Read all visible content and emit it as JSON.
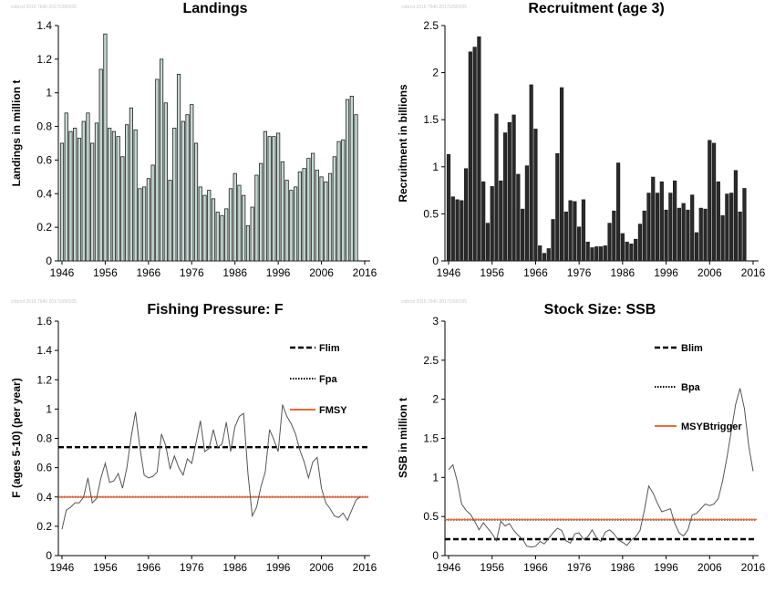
{
  "watermark": "cobrcd 2016 7640 20171090105",
  "chart_data": [
    {
      "type": "bar",
      "title": "Landings",
      "ylabel": "Landings in million t",
      "ylim": [
        0,
        1.4
      ],
      "yticks": [
        "0",
        "0.2",
        "0.4",
        "0.6",
        "0.8",
        "1",
        "1.2",
        "1.4"
      ],
      "xticks": [
        "1946",
        "1956",
        "1966",
        "1976",
        "1986",
        "1996",
        "2006",
        "2016"
      ],
      "x_start": 1946,
      "bar_color": "#c4d8d2",
      "values": [
        0.7,
        0.88,
        0.77,
        0.79,
        0.73,
        0.83,
        0.88,
        0.7,
        0.82,
        1.14,
        1.35,
        0.79,
        0.77,
        0.74,
        0.62,
        0.81,
        0.91,
        0.78,
        0.43,
        0.44,
        0.49,
        0.57,
        1.08,
        1.2,
        0.94,
        0.48,
        0.79,
        1.11,
        0.83,
        0.87,
        0.93,
        0.7,
        0.44,
        0.39,
        0.42,
        0.37,
        0.29,
        0.27,
        0.31,
        0.43,
        0.52,
        0.45,
        0.39,
        0.21,
        0.32,
        0.51,
        0.58,
        0.77,
        0.74,
        0.74,
        0.76,
        0.59,
        0.48,
        0.42,
        0.44,
        0.53,
        0.55,
        0.61,
        0.64,
        0.54,
        0.5,
        0.47,
        0.52,
        0.62,
        0.71,
        0.72,
        0.96,
        0.98,
        0.87
      ]
    },
    {
      "type": "bar",
      "title": "Recruitment (age 3)",
      "ylabel": "Recruitment in billions",
      "ylim": [
        0,
        2.5
      ],
      "yticks": [
        "0",
        "0.5",
        "1",
        "1.5",
        "2",
        "2.5"
      ],
      "xticks": [
        "1946",
        "1956",
        "1966",
        "1976",
        "1986",
        "1996",
        "2006",
        "2016"
      ],
      "x_start": 1946,
      "bar_color": "#2a2a2a",
      "values": [
        1.13,
        0.68,
        0.65,
        0.64,
        0.98,
        2.22,
        2.27,
        2.38,
        0.84,
        0.4,
        0.79,
        1.56,
        0.85,
        1.36,
        1.47,
        1.55,
        0.92,
        0.55,
        1.01,
        1.87,
        1.4,
        0.16,
        0.08,
        0.13,
        0.44,
        1.14,
        1.84,
        0.52,
        0.64,
        0.63,
        0.36,
        0.65,
        0.2,
        0.14,
        0.15,
        0.15,
        0.16,
        0.4,
        0.53,
        1.04,
        0.29,
        0.2,
        0.18,
        0.23,
        0.39,
        0.53,
        0.72,
        0.89,
        0.72,
        0.84,
        0.54,
        0.72,
        0.85,
        0.56,
        0.61,
        0.54,
        0.7,
        0.3,
        0.56,
        0.55,
        1.28,
        1.25,
        0.84,
        0.48,
        0.71,
        0.72,
        0.96,
        0.52,
        0.77
      ]
    },
    {
      "type": "line",
      "title": "Fishing Pressure: F",
      "ylabel": "F (ages 5-10) (per year)",
      "ylim": [
        0,
        1.6
      ],
      "yticks": [
        "0",
        "0.2",
        "0.4",
        "0.6",
        "0.8",
        "1",
        "1.2",
        "1.4",
        "1.6"
      ],
      "xticks": [
        "1946",
        "1956",
        "1966",
        "1976",
        "1986",
        "1996",
        "2006",
        "2016"
      ],
      "x_start": 1946,
      "values": [
        0.18,
        0.31,
        0.33,
        0.36,
        0.36,
        0.4,
        0.53,
        0.36,
        0.39,
        0.53,
        0.63,
        0.5,
        0.51,
        0.56,
        0.46,
        0.6,
        0.81,
        0.98,
        0.74,
        0.55,
        0.53,
        0.54,
        0.57,
        0.83,
        0.75,
        0.59,
        0.68,
        0.6,
        0.55,
        0.66,
        0.63,
        0.77,
        0.92,
        0.71,
        0.73,
        0.86,
        0.74,
        0.76,
        0.91,
        0.71,
        0.88,
        0.95,
        0.97,
        0.56,
        0.27,
        0.33,
        0.47,
        0.57,
        0.86,
        0.79,
        0.71,
        1.03,
        0.95,
        0.9,
        0.83,
        0.72,
        0.64,
        0.53,
        0.64,
        0.67,
        0.46,
        0.36,
        0.32,
        0.27,
        0.26,
        0.29,
        0.24,
        0.31,
        0.38,
        0.4
      ],
      "reference_lines": [
        {
          "name": "Flim",
          "value": 0.74,
          "style": "dashed",
          "color": "#000000"
        },
        {
          "name": "Fpa",
          "value": 0.4,
          "style": "dotted",
          "color": "#000000"
        },
        {
          "name": "FMSY",
          "value": 0.4,
          "style": "solid",
          "color": "#ea6a3c"
        }
      ]
    },
    {
      "type": "line",
      "title": "Stock Size: SSB",
      "ylabel": "SSB in million t",
      "ylim": [
        0,
        3
      ],
      "yticks": [
        "0",
        "0.5",
        "1",
        "1.5",
        "2",
        "2.5",
        "3"
      ],
      "xticks": [
        "1946",
        "1956",
        "1966",
        "1976",
        "1986",
        "1996",
        "2006",
        "2016"
      ],
      "x_start": 1946,
      "values": [
        1.1,
        1.16,
        0.95,
        0.66,
        0.58,
        0.53,
        0.44,
        0.33,
        0.42,
        0.35,
        0.28,
        0.19,
        0.44,
        0.38,
        0.41,
        0.32,
        0.26,
        0.21,
        0.12,
        0.11,
        0.12,
        0.18,
        0.15,
        0.22,
        0.29,
        0.35,
        0.32,
        0.19,
        0.16,
        0.28,
        0.29,
        0.21,
        0.24,
        0.33,
        0.23,
        0.18,
        0.3,
        0.33,
        0.28,
        0.2,
        0.17,
        0.13,
        0.2,
        0.24,
        0.32,
        0.58,
        0.89,
        0.8,
        0.67,
        0.56,
        0.58,
        0.6,
        0.41,
        0.29,
        0.25,
        0.33,
        0.52,
        0.54,
        0.6,
        0.66,
        0.64,
        0.66,
        0.73,
        0.96,
        1.26,
        1.6,
        1.94,
        2.14,
        1.88,
        1.4,
        1.08
      ],
      "reference_lines": [
        {
          "name": "Blim",
          "value": 0.21,
          "style": "dashed",
          "color": "#000000"
        },
        {
          "name": "Bpa",
          "value": 0.46,
          "style": "dotted",
          "color": "#000000"
        },
        {
          "name": "MSYBtrigger",
          "value": 0.46,
          "style": "solid",
          "color": "#ea6a3c"
        }
      ]
    }
  ]
}
